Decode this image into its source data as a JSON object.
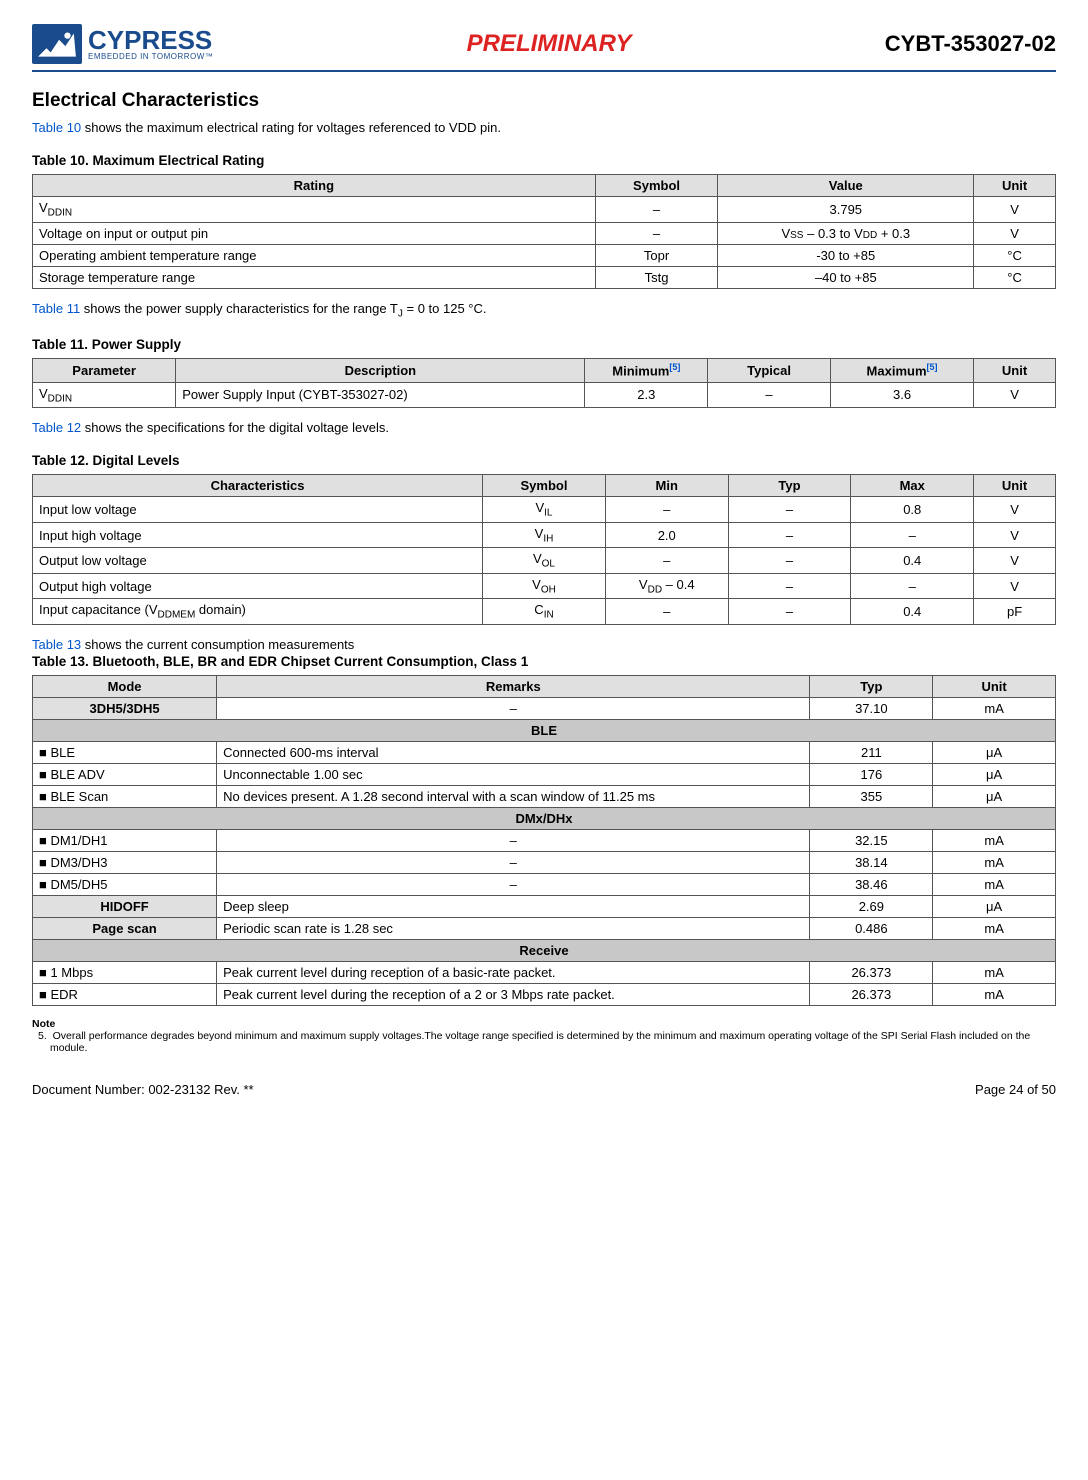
{
  "header": {
    "logo_main": "CYPRESS",
    "logo_sub": "EMBEDDED IN TOMORROW™",
    "preliminary": "PRELIMINARY",
    "partnum": "CYBT-353027-02"
  },
  "section_title": "Electrical Characteristics",
  "intro10_prefix": "Table 10",
  "intro10_rest": " shows the maximum electrical rating for voltages referenced to VDD pin.",
  "table10": {
    "title": "Table 10.  Maximum Electrical Rating",
    "cols": [
      "Rating",
      "Symbol",
      "Value",
      "Unit"
    ],
    "rows": [
      {
        "rating": "VDDIN",
        "rating_sub": true,
        "symbol": "–",
        "value": "3.795",
        "unit": "V"
      },
      {
        "rating": "Voltage on input or output pin",
        "symbol": "–",
        "value": "VSS – 0.3 to VDD + 0.3",
        "value_smallcaps": true,
        "unit": "V"
      },
      {
        "rating": "Operating ambient temperature range",
        "symbol": "Topr",
        "value": "-30 to +85",
        "unit": "°C"
      },
      {
        "rating": "Storage temperature range",
        "symbol": "Tstg",
        "value": "–40 to +85",
        "unit": "°C"
      }
    ]
  },
  "intro11_prefix": "Table 11",
  "intro11_rest": " shows the power supply characteristics for the range T",
  "intro11_sub": "J",
  "intro11_end": " = 0 to 125 °C.",
  "table11": {
    "title": "Table 11.  Power Supply",
    "cols": [
      "Parameter",
      "Description",
      "Minimum",
      "Typical",
      "Maximum",
      "Unit"
    ],
    "note_ref": "[5]",
    "rows": [
      {
        "param": "VDDIN",
        "param_sub": true,
        "desc": "Power Supply Input (CYBT-353027-02)",
        "min": "2.3",
        "typ": "–",
        "max": "3.6",
        "unit": "V"
      }
    ]
  },
  "intro12_prefix": "Table 12",
  "intro12_rest": " shows the specifications for the digital voltage levels.",
  "table12": {
    "title": "Table 12.  Digital Levels",
    "cols": [
      "Characteristics",
      "Symbol",
      "Min",
      "Typ",
      "Max",
      "Unit"
    ],
    "rows": [
      {
        "char": "Input low voltage",
        "sym": "V",
        "symsub": "IL",
        "min": "–",
        "typ": "–",
        "max": "0.8",
        "unit": "V"
      },
      {
        "char": "Input high voltage",
        "sym": "V",
        "symsub": "IH",
        "min": "2.0",
        "typ": "–",
        "max": "–",
        "unit": "V"
      },
      {
        "char": "Output low voltage",
        "sym": "V",
        "symsub": "OL",
        "min": "–",
        "typ": "–",
        "max": "0.4",
        "unit": "V"
      },
      {
        "char": "Output high voltage",
        "sym": "V",
        "symsub": "OH",
        "min": "VDD – 0.4",
        "min_sub": true,
        "typ": "–",
        "max": "–",
        "unit": "V"
      },
      {
        "char": "Input capacitance (V",
        "char_sub": "DDMEM",
        "char_end": " domain)",
        "sym": "C",
        "symsub": "IN",
        "min": "–",
        "typ": "–",
        "max": "0.4",
        "unit": "pF"
      }
    ]
  },
  "intro13_prefix": "Table 13",
  "intro13_rest": " shows the current consumption measurements",
  "table13": {
    "title": "Table 13.  Bluetooth, BLE, BR and EDR Chipset Current Consumption, Class 1",
    "cols": [
      "Mode",
      "Remarks",
      "Typ",
      "Unit"
    ],
    "sections": [
      {
        "type": "moderow",
        "mode": "3DH5/3DH5",
        "remarks": "–",
        "typ": "37.10",
        "unit": "mA"
      },
      {
        "type": "section",
        "label": "BLE"
      },
      {
        "type": "row",
        "mode": "BLE",
        "remarks": "Connected 600-ms interval",
        "typ": "211",
        "unit": "μA"
      },
      {
        "type": "row",
        "mode": "BLE ADV",
        "remarks": "Unconnectable 1.00 sec",
        "typ": "176",
        "unit": "μA"
      },
      {
        "type": "row",
        "mode": "BLE Scan",
        "remarks": "No devices present. A 1.28 second interval with a scan window of 11.25 ms",
        "typ": "355",
        "unit": "μA"
      },
      {
        "type": "section",
        "label": "DMx/DHx"
      },
      {
        "type": "row",
        "mode": "DM1/DH1",
        "remarks": "–",
        "typ": "32.15",
        "unit": "mA"
      },
      {
        "type": "row",
        "mode": "DM3/DH3",
        "remarks": "–",
        "typ": "38.14",
        "unit": "mA"
      },
      {
        "type": "row",
        "mode": "DM5/DH5",
        "remarks": "–",
        "typ": "38.46",
        "unit": "mA"
      },
      {
        "type": "moderow",
        "mode": "HIDOFF",
        "remarks": "Deep sleep",
        "typ": "2.69",
        "unit": "μA"
      },
      {
        "type": "moderow",
        "mode": "Page scan",
        "remarks": "Periodic scan rate is 1.28 sec",
        "typ": "0.486",
        "unit": "mA"
      },
      {
        "type": "section",
        "label": "Receive"
      },
      {
        "type": "row",
        "mode": "1 Mbps",
        "remarks": "Peak current level during reception of a basic-rate packet.",
        "typ": "26.373",
        "unit": "mA"
      },
      {
        "type": "row",
        "mode": "EDR",
        "remarks": "Peak current level during the reception of a 2 or 3 Mbps rate packet.",
        "typ": "26.373",
        "unit": "mA"
      }
    ]
  },
  "note": {
    "title": "Note",
    "num": "5.",
    "text": "Overall performance degrades beyond minimum and maximum supply voltages.The voltage range specified is determined by the minimum and maximum operating voltage of the SPI Serial Flash included on the module."
  },
  "footer": {
    "left": "Document Number: 002-23132 Rev. **",
    "right": "Page 24 of 50"
  },
  "colwidths": {
    "t10": [
      "55%",
      "12%",
      "25%",
      "8%"
    ],
    "t11": [
      "14%",
      "40%",
      "12%",
      "12%",
      "14%",
      "8%"
    ],
    "t12": [
      "44%",
      "12%",
      "12%",
      "12%",
      "12%",
      "8%"
    ],
    "t13": [
      "18%",
      "58%",
      "12%",
      "12%"
    ]
  }
}
